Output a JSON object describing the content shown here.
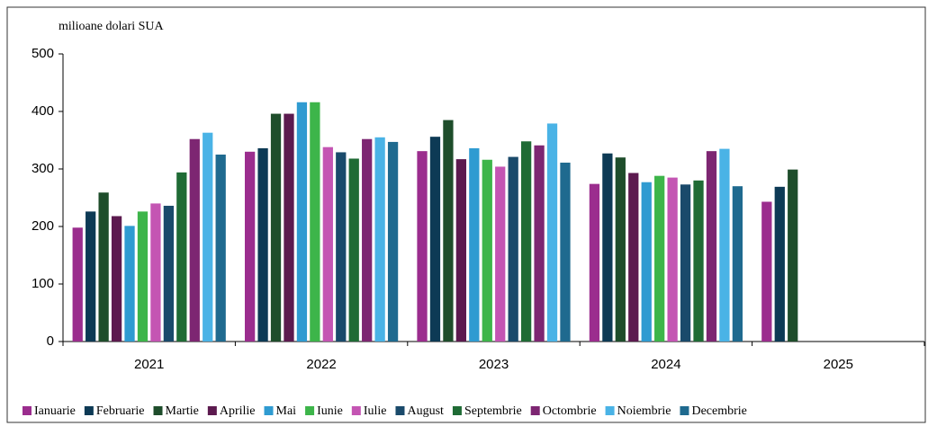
{
  "chart_data": {
    "type": "bar",
    "y_axis_label": "milioane dolari SUA",
    "categories": [
      "2021",
      "2022",
      "2023",
      "2024",
      "2025"
    ],
    "series": [
      {
        "name": "Ianuarie",
        "color": "#9b2d8e",
        "values": [
          198,
          330,
          331,
          274,
          243
        ]
      },
      {
        "name": "Februarie",
        "color": "#0d3a55",
        "values": [
          226,
          336,
          356,
          327,
          269
        ]
      },
      {
        "name": "Martie",
        "color": "#1e4d2b",
        "values": [
          259,
          396,
          385,
          320,
          299
        ]
      },
      {
        "name": "Aprilie",
        "color": "#5c1a4f",
        "values": [
          218,
          396,
          317,
          293,
          null
        ]
      },
      {
        "name": "Mai",
        "color": "#2f9bd1",
        "values": [
          201,
          416,
          336,
          277,
          null
        ]
      },
      {
        "name": "Iunie",
        "color": "#3db54a",
        "values": [
          226,
          416,
          316,
          288,
          null
        ]
      },
      {
        "name": "Iulie",
        "color": "#c455b3",
        "values": [
          240,
          338,
          304,
          285,
          null
        ]
      },
      {
        "name": "August",
        "color": "#1a4a6b",
        "values": [
          236,
          329,
          321,
          273,
          null
        ]
      },
      {
        "name": "Septembrie",
        "color": "#1f6b35",
        "values": [
          294,
          318,
          348,
          280,
          null
        ]
      },
      {
        "name": "Octombrie",
        "color": "#7d2672",
        "values": [
          352,
          352,
          341,
          331,
          null
        ]
      },
      {
        "name": "Noiembrie",
        "color": "#4ab3e6",
        "values": [
          363,
          355,
          379,
          335,
          null
        ]
      },
      {
        "name": "Decembrie",
        "color": "#1f6a8f",
        "values": [
          325,
          347,
          311,
          270,
          null
        ]
      }
    ],
    "ylim": [
      0,
      500
    ],
    "yticks": [
      0,
      100,
      200,
      300,
      400,
      500
    ],
    "legend": "bottom"
  }
}
